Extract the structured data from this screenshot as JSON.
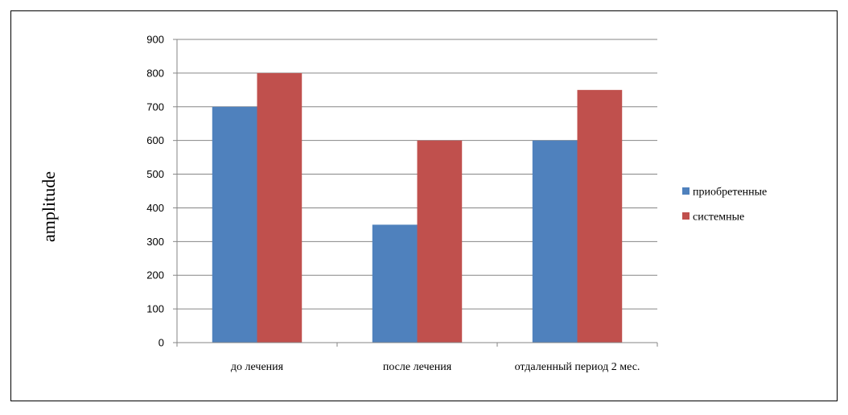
{
  "chart_data": {
    "type": "bar",
    "title": "",
    "xlabel": "",
    "ylabel": "amplitude",
    "categories": [
      "до лечения",
      "после лечения",
      "отдаленный период 2 мес."
    ],
    "series": [
      {
        "name": "приобретенные",
        "color": "#4F81BD",
        "values": [
          700,
          350,
          600
        ]
      },
      {
        "name": "системные",
        "color": "#C0504D",
        "values": [
          800,
          600,
          750
        ]
      }
    ],
    "ylim": [
      0,
      900
    ],
    "yticks": [
      0,
      100,
      200,
      300,
      400,
      500,
      600,
      700,
      800,
      900
    ],
    "grid": true,
    "legend": "right"
  }
}
